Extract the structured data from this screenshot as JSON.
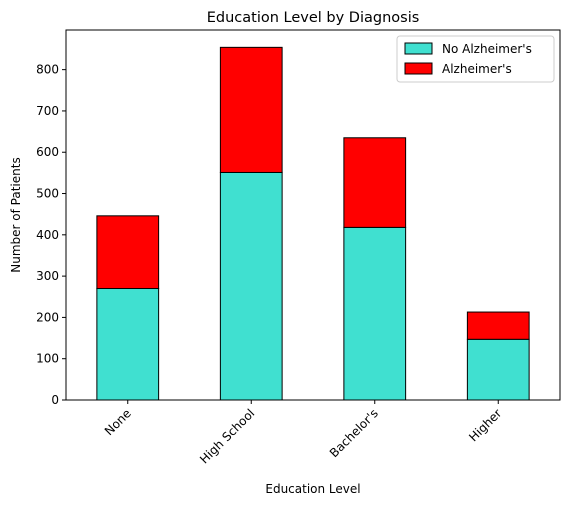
{
  "chart_data": {
    "type": "bar",
    "stacked": true,
    "title": "Education Level by Diagnosis",
    "xlabel": "Education Level",
    "ylabel": "Number of Patients",
    "categories": [
      "None",
      "High School",
      "Bachelor's",
      "Higher"
    ],
    "series": [
      {
        "name": "No Alzheimer's",
        "color": "#40E0D0",
        "values": [
          270,
          551,
          418,
          147
        ]
      },
      {
        "name": "Alzheimer's",
        "color": "#FF0000",
        "values": [
          176,
          303,
          217,
          66
        ]
      }
    ],
    "ylim": [
      0,
      896
    ],
    "yticks": [
      0,
      100,
      200,
      300,
      400,
      500,
      600,
      700,
      800
    ],
    "grid": false,
    "legend_position": "top-right"
  }
}
